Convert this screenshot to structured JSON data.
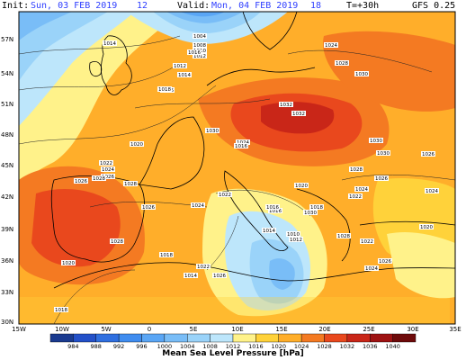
{
  "header": {
    "init_label": "Init:",
    "init_value": "Sun, 03 FEB 2019",
    "init_hour": "12",
    "valid_label": "Valid:",
    "valid_value": "Mon, 04 FEB 2019",
    "valid_hour": "18",
    "step": "T=+30h",
    "model": "GFS 0.25"
  },
  "axes": {
    "lat_labels": [
      "57N",
      "54N",
      "51N",
      "48N",
      "45N",
      "42N",
      "39N",
      "36N",
      "33N",
      "30N"
    ],
    "lon_labels": [
      "15W",
      "10W",
      "5W",
      "0",
      "5E",
      "10E",
      "15E",
      "20E",
      "25E",
      "30E",
      "35E"
    ]
  },
  "legend": {
    "title": "Mean Sea Level Pressure [hPa]",
    "values": [
      "984",
      "988",
      "992",
      "996",
      "1000",
      "1004",
      "1008",
      "1012",
      "1016",
      "1020",
      "1024",
      "1028",
      "1032",
      "1036",
      "1040"
    ],
    "colors": [
      "#1a3a8f",
      "#2350c8",
      "#2f6fe0",
      "#3f8cef",
      "#5aa6f5",
      "#79bdf7",
      "#9ad3f9",
      "#bde6fb",
      "#fff28a",
      "#ffd23a",
      "#ffae2a",
      "#f47a22",
      "#e9481d",
      "#c92618",
      "#9e1212",
      "#6e0a0a"
    ]
  },
  "isobar_labels": [
    {
      "t": "1004"
    },
    {
      "t": "1008"
    },
    {
      "t": "1010"
    },
    {
      "t": "1012"
    },
    {
      "t": "1014"
    },
    {
      "t": "1012"
    },
    {
      "t": "1014"
    },
    {
      "t": "1016"
    },
    {
      "t": "1016"
    },
    {
      "t": "1018"
    },
    {
      "t": "1020"
    },
    {
      "t": "1022"
    },
    {
      "t": "1024"
    },
    {
      "t": "1026"
    },
    {
      "t": "1026"
    },
    {
      "t": "1028"
    },
    {
      "t": "1028"
    },
    {
      "t": "1030"
    },
    {
      "t": "1032"
    },
    {
      "t": "1032"
    },
    {
      "t": "1030"
    },
    {
      "t": "1030"
    },
    {
      "t": "1028"
    },
    {
      "t": "1026"
    },
    {
      "t": "1024"
    },
    {
      "t": "1022"
    },
    {
      "t": "1020"
    },
    {
      "t": "1018"
    },
    {
      "t": "1016"
    },
    {
      "t": "1014"
    },
    {
      "t": "1012"
    },
    {
      "t": "1010"
    },
    {
      "t": "1014"
    },
    {
      "t": "1018"
    },
    {
      "t": "1022"
    },
    {
      "t": "1026"
    },
    {
      "t": "1024"
    },
    {
      "t": "1028"
    },
    {
      "t": "1030"
    },
    {
      "t": "1026"
    },
    {
      "t": "1024"
    },
    {
      "t": "1020"
    },
    {
      "t": "1022"
    },
    {
      "t": "1024"
    },
    {
      "t": "1026"
    },
    {
      "t": "1028"
    },
    {
      "t": "1030"
    },
    {
      "t": "1024"
    },
    {
      "t": "1016"
    },
    {
      "t": "1022"
    },
    {
      "t": "1024"
    },
    {
      "t": "1026"
    },
    {
      "t": "1028"
    },
    {
      "t": "1020"
    },
    {
      "t": "1018"
    },
    {
      "t": "1016"
    }
  ]
}
